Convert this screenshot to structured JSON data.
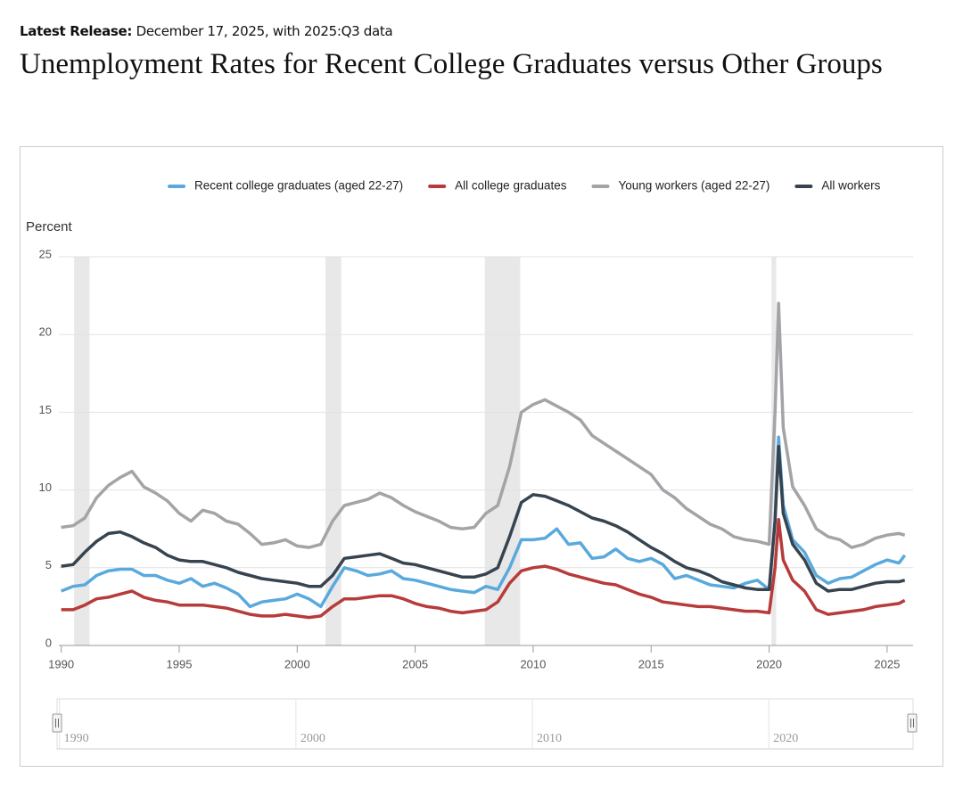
{
  "header": {
    "release_label": "Latest Release:",
    "release_text": "December 17, 2025, with 2025:Q3 data",
    "title": "Unemployment Rates for Recent College Graduates versus Other Groups"
  },
  "chart_data": {
    "type": "line",
    "y_label": "Percent",
    "x": [
      1990,
      1990.5,
      1991,
      1991.5,
      1992,
      1992.5,
      1993,
      1993.5,
      1994,
      1994.5,
      1995,
      1995.5,
      1996,
      1996.5,
      1997,
      1997.5,
      1998,
      1998.5,
      1999,
      1999.5,
      2000,
      2000.5,
      2001,
      2001.5,
      2002,
      2002.5,
      2003,
      2003.5,
      2004,
      2004.5,
      2005,
      2005.5,
      2006,
      2006.5,
      2007,
      2007.5,
      2008,
      2008.5,
      2009,
      2009.5,
      2010,
      2010.5,
      2011,
      2011.5,
      2012,
      2012.5,
      2013,
      2013.5,
      2014,
      2014.5,
      2015,
      2015.5,
      2016,
      2016.5,
      2017,
      2017.5,
      2018,
      2018.5,
      2019,
      2019.5,
      2020,
      2020.25,
      2020.4,
      2020.6,
      2021,
      2021.5,
      2022,
      2022.5,
      2023,
      2023.5,
      2024,
      2024.5,
      2025,
      2025.5,
      2025.75
    ],
    "series": [
      {
        "name": "Recent college graduates (aged 22-27)",
        "color": "#5aa9dd",
        "values": [
          3.5,
          3.8,
          3.9,
          4.5,
          4.8,
          4.9,
          4.9,
          4.5,
          4.5,
          4.2,
          4.0,
          4.3,
          3.8,
          4.0,
          3.7,
          3.3,
          2.5,
          2.8,
          2.9,
          3.0,
          3.3,
          3.0,
          2.5,
          3.8,
          5.0,
          4.8,
          4.5,
          4.6,
          4.8,
          4.3,
          4.2,
          4.0,
          3.8,
          3.6,
          3.5,
          3.4,
          3.8,
          3.6,
          5.0,
          6.8,
          6.8,
          6.9,
          7.5,
          6.5,
          6.6,
          5.6,
          5.7,
          6.2,
          5.6,
          5.4,
          5.6,
          5.2,
          4.3,
          4.5,
          4.2,
          3.9,
          3.8,
          3.7,
          4.0,
          4.2,
          3.6,
          8.0,
          13.4,
          9.0,
          6.8,
          6.0,
          4.5,
          4.0,
          4.3,
          4.4,
          4.8,
          5.2,
          5.5,
          5.3,
          5.8
        ]
      },
      {
        "name": "All college graduates",
        "color": "#b83b3b",
        "values": [
          2.3,
          2.3,
          2.6,
          3.0,
          3.1,
          3.3,
          3.5,
          3.1,
          2.9,
          2.8,
          2.6,
          2.6,
          2.6,
          2.5,
          2.4,
          2.2,
          2.0,
          1.9,
          1.9,
          2.0,
          1.9,
          1.8,
          1.9,
          2.5,
          3.0,
          3.0,
          3.1,
          3.2,
          3.2,
          3.0,
          2.7,
          2.5,
          2.4,
          2.2,
          2.1,
          2.2,
          2.3,
          2.8,
          4.0,
          4.8,
          5.0,
          5.1,
          4.9,
          4.6,
          4.4,
          4.2,
          4.0,
          3.9,
          3.6,
          3.3,
          3.1,
          2.8,
          2.7,
          2.6,
          2.5,
          2.5,
          2.4,
          2.3,
          2.2,
          2.2,
          2.1,
          5.0,
          8.1,
          5.5,
          4.2,
          3.5,
          2.3,
          2.0,
          2.1,
          2.2,
          2.3,
          2.5,
          2.6,
          2.7,
          2.9
        ]
      },
      {
        "name": "Young workers (aged 22-27)",
        "color": "#a3a3a8",
        "values": [
          7.6,
          7.7,
          8.2,
          9.5,
          10.3,
          10.8,
          11.2,
          10.2,
          9.8,
          9.3,
          8.5,
          8.0,
          8.7,
          8.5,
          8.0,
          7.8,
          7.2,
          6.5,
          6.6,
          6.8,
          6.4,
          6.3,
          6.5,
          8.0,
          9.0,
          9.2,
          9.4,
          9.8,
          9.5,
          9.0,
          8.6,
          8.3,
          8.0,
          7.6,
          7.5,
          7.6,
          8.5,
          9.0,
          11.5,
          15.0,
          15.5,
          15.8,
          15.4,
          15.0,
          14.5,
          13.5,
          13.0,
          12.5,
          12.0,
          11.5,
          11.0,
          10.0,
          9.5,
          8.8,
          8.3,
          7.8,
          7.5,
          7.0,
          6.8,
          6.7,
          6.5,
          15.0,
          22.0,
          14.0,
          10.2,
          9.0,
          7.5,
          7.0,
          6.8,
          6.3,
          6.5,
          6.9,
          7.1,
          7.2,
          7.1
        ]
      },
      {
        "name": "All workers",
        "color": "#37444f",
        "values": [
          5.1,
          5.2,
          6.0,
          6.7,
          7.2,
          7.3,
          7.0,
          6.6,
          6.3,
          5.8,
          5.5,
          5.4,
          5.4,
          5.2,
          5.0,
          4.7,
          4.5,
          4.3,
          4.2,
          4.1,
          4.0,
          3.8,
          3.8,
          4.5,
          5.6,
          5.7,
          5.8,
          5.9,
          5.6,
          5.3,
          5.2,
          5.0,
          4.8,
          4.6,
          4.4,
          4.4,
          4.6,
          5.0,
          7.0,
          9.2,
          9.7,
          9.6,
          9.3,
          9.0,
          8.6,
          8.2,
          8.0,
          7.7,
          7.3,
          6.8,
          6.3,
          5.9,
          5.4,
          5.0,
          4.8,
          4.5,
          4.1,
          3.9,
          3.7,
          3.6,
          3.6,
          8.0,
          12.8,
          8.5,
          6.5,
          5.5,
          4.0,
          3.5,
          3.6,
          3.6,
          3.8,
          4.0,
          4.1,
          4.1,
          4.2
        ]
      }
    ],
    "recessions": [
      [
        1990.55,
        1991.2
      ],
      [
        2001.2,
        2001.87
      ],
      [
        2007.95,
        2009.45
      ],
      [
        2020.1,
        2020.3
      ]
    ],
    "xlim": [
      1989.9,
      2026.1
    ],
    "xticks": [
      1990,
      1995,
      2000,
      2005,
      2010,
      2015,
      2020,
      2025
    ],
    "ylim": [
      0,
      25
    ],
    "yticks": [
      0,
      5,
      10,
      15,
      20,
      25
    ],
    "grid": true,
    "legend": "top",
    "navigator_ticks": [
      1990,
      2000,
      2010,
      2020
    ]
  }
}
